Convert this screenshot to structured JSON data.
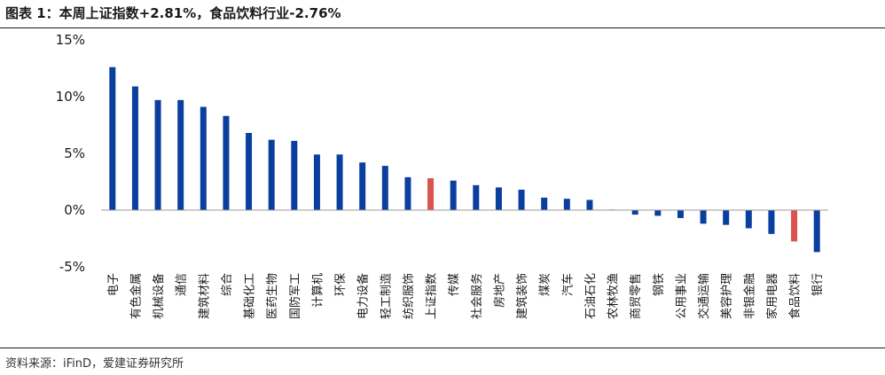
{
  "title": "图表 1：本周上证指数+2.81%，食品饮料行业-2.76%",
  "source": "资料来源：iFinD，爱建证券研究所",
  "colors": {
    "default_bar": "#0a3fa0",
    "highlight_bar": "#d9534f",
    "axis": "#9a9a9a",
    "text": "#1a1a1a"
  },
  "chart_data": {
    "type": "bar",
    "title": "",
    "xlabel": "",
    "ylabel": "",
    "ylim": [
      -5,
      15
    ],
    "yticks": [
      -5,
      0,
      5,
      10,
      15
    ],
    "ytick_labels": [
      "-5%",
      "0%",
      "5%",
      "10%",
      "15%"
    ],
    "y_unit": "%",
    "grid": false,
    "legend": "none",
    "categories": [
      "电子",
      "有色金属",
      "机械设备",
      "通信",
      "建筑材料",
      "综合",
      "基础化工",
      "医药生物",
      "国防军工",
      "计算机",
      "环保",
      "电力设备",
      "轻工制造",
      "纺织服饰",
      "上证指数",
      "传媒",
      "社会服务",
      "房地产",
      "建筑装饰",
      "煤炭",
      "汽车",
      "石油石化",
      "农林牧渔",
      "商贸零售",
      "钢铁",
      "公用事业",
      "交通运输",
      "美容护理",
      "非银金融",
      "家用电器",
      "食品饮料",
      "银行"
    ],
    "values": [
      12.6,
      10.9,
      9.7,
      9.7,
      9.1,
      8.3,
      6.8,
      6.2,
      6.1,
      4.9,
      4.9,
      4.2,
      3.9,
      2.9,
      2.81,
      2.6,
      2.2,
      2.0,
      1.8,
      1.1,
      1.0,
      0.9,
      0.05,
      -0.4,
      -0.5,
      -0.7,
      -1.2,
      -1.3,
      -1.6,
      -2.1,
      -2.76,
      -3.7
    ],
    "highlight": [
      "上证指数",
      "食品饮料"
    ]
  }
}
